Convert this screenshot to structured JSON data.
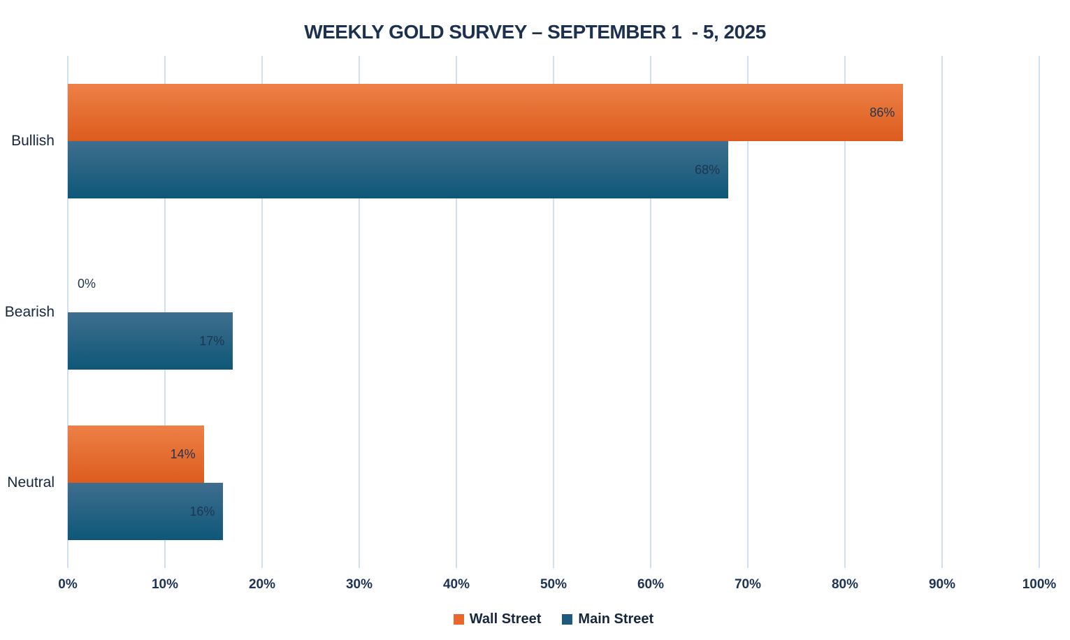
{
  "page": {
    "background": "#FFFFFF"
  },
  "chart_data": {
    "type": "bar",
    "orientation": "horizontal",
    "title": "WEEKLY GOLD SURVEY – SEPTEMBER 1  - 5, 2025",
    "categories": [
      "Bullish",
      "Bearish",
      "Neutral"
    ],
    "series": [
      {
        "name": "Wall Street",
        "legend_color": "#E9662C",
        "gradient_top": "#EE8047",
        "gradient_bottom": "#DC5C1D",
        "values": [
          86,
          0,
          14
        ],
        "labels": [
          "86%",
          "0%",
          "14%"
        ]
      },
      {
        "name": "Main Street",
        "legend_color": "#1F5A7D",
        "gradient_top": "#3F6E8E",
        "gradient_bottom": "#0E5778",
        "values": [
          68,
          17,
          16
        ],
        "labels": [
          "68%",
          "17%",
          "16%"
        ]
      }
    ],
    "x_axis": {
      "min": 0,
      "max": 100,
      "tick_step": 10,
      "tick_labels": [
        "0%",
        "10%",
        "20%",
        "30%",
        "40%",
        "50%",
        "60%",
        "70%",
        "80%",
        "90%",
        "100%"
      ]
    },
    "grid": {
      "vertical": true,
      "color": "#CFE0F2"
    },
    "legend": {
      "position": "bottom",
      "entries": [
        "Wall Street",
        "Main Street"
      ]
    },
    "text_colors": {
      "title": "#1C3050",
      "value_labels": "#1F3450",
      "axis": "#1C3357"
    }
  }
}
